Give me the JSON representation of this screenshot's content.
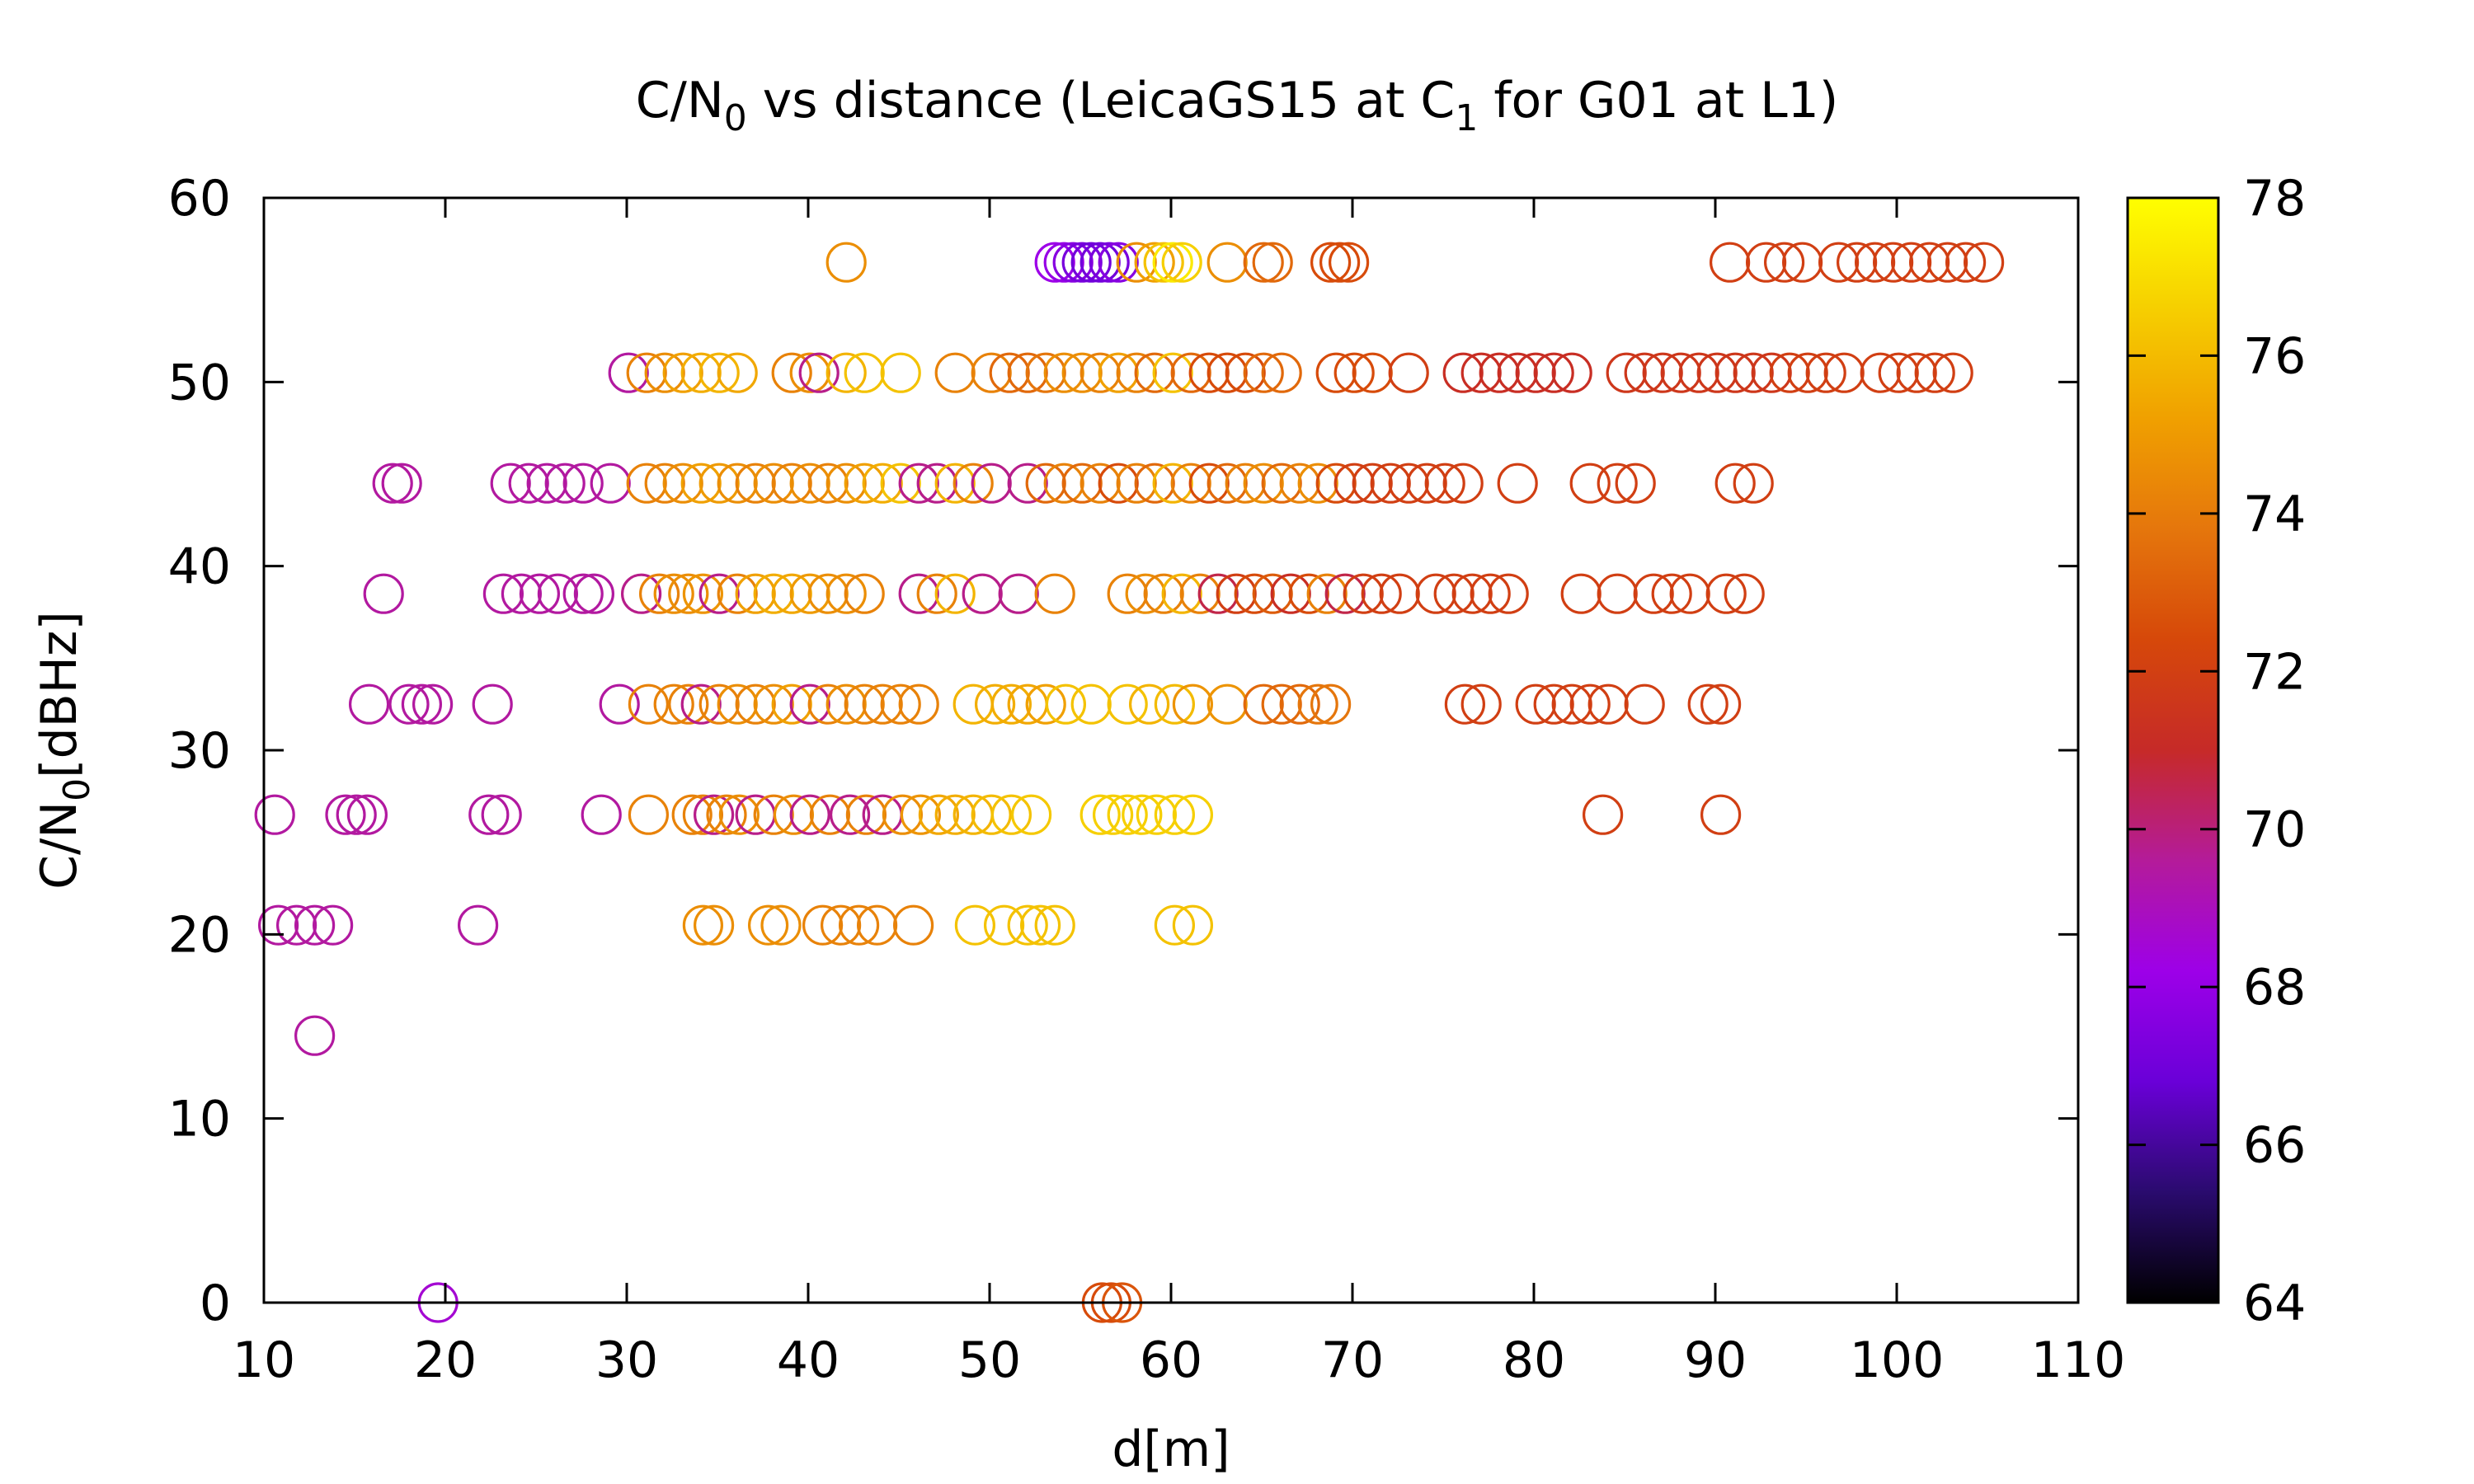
{
  "chart_data": {
    "type": "scatter",
    "title": {
      "prefix": "C/N",
      "prefix_sub": "0",
      "middle": " vs distance (LeicaGS15 at C",
      "middle_sub": "1",
      "suffix": " for G01 at L1)"
    },
    "xlabel": "d[m]",
    "ylabel": {
      "main": "C/N",
      "sub": "0",
      "unit": "[dBHz]"
    },
    "xlim": [
      10,
      110
    ],
    "ylim": [
      0,
      60
    ],
    "x_ticks": [
      "10",
      "20",
      "30",
      "40",
      "50",
      "60",
      "70",
      "80",
      "90",
      "100",
      "110"
    ],
    "y_ticks": [
      "0",
      "10",
      "20",
      "30",
      "40",
      "50",
      "60"
    ],
    "colorbar": {
      "range": [
        64,
        78
      ],
      "ticks": [
        "64",
        "66",
        "68",
        "70",
        "72",
        "74",
        "76",
        "78"
      ],
      "palette": [
        "#000000",
        "#2a0b6e",
        "#6a00d8",
        "#9d00e8",
        "#b41b9a",
        "#c62a28",
        "#d6480a",
        "#e5760c",
        "#f0a000",
        "#f6cf00",
        "#ffff00"
      ]
    },
    "marker": "open-circle",
    "grid": false,
    "points": [
      [
        19.6,
        0,
        68.6
      ],
      [
        56.2,
        0,
        72.5
      ],
      [
        56.7,
        0,
        72.5
      ],
      [
        57.3,
        0,
        72.8
      ],
      [
        12.8,
        14.5,
        69.5
      ],
      [
        10.8,
        20.5,
        69.5
      ],
      [
        11.8,
        20.5,
        69.5
      ],
      [
        12.8,
        20.5,
        69.5
      ],
      [
        13.8,
        20.5,
        69.5
      ],
      [
        21.8,
        20.5,
        69.5
      ],
      [
        34.2,
        20.5,
        74.6
      ],
      [
        34.8,
        20.5,
        74.6
      ],
      [
        37.8,
        20.5,
        74.6
      ],
      [
        38.5,
        20.5,
        74.6
      ],
      [
        40.8,
        20.5,
        74.2
      ],
      [
        41.8,
        20.5,
        74.2
      ],
      [
        42.8,
        20.5,
        74.2
      ],
      [
        43.8,
        20.5,
        74.2
      ],
      [
        45.8,
        20.5,
        74.2
      ],
      [
        49.2,
        20.5,
        76.2
      ],
      [
        50.8,
        20.5,
        76.2
      ],
      [
        52.1,
        20.5,
        76.2
      ],
      [
        52.8,
        20.5,
        76.2
      ],
      [
        53.6,
        20.5,
        76.2
      ],
      [
        60.2,
        20.5,
        76.2
      ],
      [
        61.2,
        20.5,
        76.2
      ],
      [
        10.6,
        26.5,
        69.5
      ],
      [
        14.5,
        26.5,
        69.5
      ],
      [
        15.1,
        26.5,
        69.5
      ],
      [
        15.7,
        26.5,
        69.5
      ],
      [
        22.4,
        26.5,
        69.5
      ],
      [
        23.1,
        26.5,
        69.5
      ],
      [
        28.6,
        26.5,
        69.5
      ],
      [
        31.2,
        26.5,
        74.2
      ],
      [
        33.6,
        26.5,
        74.2
      ],
      [
        34.2,
        26.5,
        74.2
      ],
      [
        34.8,
        26.5,
        69.8
      ],
      [
        35.5,
        26.5,
        74.2
      ],
      [
        36.2,
        26.5,
        74.6
      ],
      [
        37.1,
        26.5,
        69.8
      ],
      [
        38.1,
        26.5,
        74.2
      ],
      [
        39.2,
        26.5,
        74.6
      ],
      [
        40.1,
        26.5,
        69.8
      ],
      [
        41.2,
        26.5,
        74.2
      ],
      [
        42.3,
        26.5,
        69.8
      ],
      [
        43.2,
        26.5,
        74.2
      ],
      [
        44.1,
        26.5,
        69.8
      ],
      [
        45.2,
        26.5,
        74.6
      ],
      [
        46.2,
        26.5,
        74.8
      ],
      [
        47.2,
        26.5,
        75.4
      ],
      [
        48.1,
        26.5,
        75.6
      ],
      [
        49.1,
        26.5,
        75.8
      ],
      [
        50.1,
        26.5,
        76.0
      ],
      [
        51.2,
        26.5,
        76.2
      ],
      [
        52.3,
        26.5,
        76.4
      ],
      [
        56.1,
        26.5,
        76.6
      ],
      [
        56.8,
        26.5,
        76.6
      ],
      [
        57.6,
        26.5,
        76.6
      ],
      [
        58.4,
        26.5,
        76.6
      ],
      [
        59.2,
        26.5,
        76.6
      ],
      [
        60.2,
        26.5,
        76.6
      ],
      [
        61.2,
        26.5,
        76.6
      ],
      [
        83.8,
        26.5,
        72.0
      ],
      [
        90.3,
        26.5,
        72.0
      ],
      [
        15.8,
        32.5,
        69.5
      ],
      [
        18.0,
        32.5,
        69.5
      ],
      [
        18.7,
        32.5,
        69.5
      ],
      [
        19.3,
        32.5,
        69.5
      ],
      [
        22.6,
        32.5,
        69.5
      ],
      [
        29.6,
        32.5,
        69.5
      ],
      [
        31.2,
        32.5,
        74.2
      ],
      [
        32.6,
        32.5,
        74.2
      ],
      [
        33.4,
        32.5,
        74.2
      ],
      [
        34.1,
        32.5,
        69.8
      ],
      [
        35.1,
        32.5,
        74.2
      ],
      [
        36.1,
        32.5,
        74.6
      ],
      [
        37.1,
        32.5,
        74.2
      ],
      [
        38.1,
        32.5,
        74.6
      ],
      [
        39.1,
        32.5,
        75.2
      ],
      [
        40.1,
        32.5,
        69.8
      ],
      [
        41.1,
        32.5,
        74.2
      ],
      [
        42.1,
        32.5,
        74.6
      ],
      [
        43.1,
        32.5,
        74.2
      ],
      [
        44.1,
        32.5,
        74.2
      ],
      [
        45.1,
        32.5,
        74.2
      ],
      [
        46.1,
        32.5,
        74.2
      ],
      [
        49.1,
        32.5,
        75.8
      ],
      [
        50.3,
        32.5,
        75.6
      ],
      [
        51.2,
        32.5,
        75.6
      ],
      [
        52.1,
        32.5,
        75.4
      ],
      [
        53.1,
        32.5,
        75.2
      ],
      [
        54.2,
        32.5,
        76.2
      ],
      [
        55.6,
        32.5,
        76.2
      ],
      [
        57.6,
        32.5,
        76.2
      ],
      [
        58.8,
        32.5,
        75.8
      ],
      [
        60.2,
        32.5,
        76.0
      ],
      [
        61.2,
        32.5,
        74.8
      ],
      [
        63.1,
        32.5,
        74.8
      ],
      [
        65.1,
        32.5,
        73.4
      ],
      [
        66.1,
        32.5,
        73.4
      ],
      [
        67.1,
        32.5,
        73.4
      ],
      [
        68.1,
        32.5,
        73.8
      ],
      [
        68.8,
        32.5,
        73.8
      ],
      [
        76.2,
        32.5,
        72.0
      ],
      [
        77.1,
        32.5,
        72.0
      ],
      [
        80.1,
        32.5,
        72.0
      ],
      [
        81.1,
        32.5,
        72.0
      ],
      [
        82.1,
        32.5,
        72.0
      ],
      [
        83.1,
        32.5,
        72.0
      ],
      [
        84.1,
        32.5,
        72.0
      ],
      [
        86.1,
        32.5,
        72.0
      ],
      [
        89.6,
        32.5,
        72.0
      ],
      [
        90.3,
        32.5,
        72.0
      ],
      [
        16.6,
        38.5,
        69.5
      ],
      [
        23.2,
        38.5,
        69.5
      ],
      [
        24.2,
        38.5,
        69.5
      ],
      [
        25.2,
        38.5,
        69.5
      ],
      [
        26.2,
        38.5,
        69.5
      ],
      [
        27.6,
        38.5,
        69.5
      ],
      [
        28.2,
        38.5,
        69.5
      ],
      [
        30.8,
        38.5,
        69.8
      ],
      [
        31.8,
        38.5,
        74.2
      ],
      [
        32.6,
        38.5,
        74.6
      ],
      [
        33.4,
        38.5,
        74.6
      ],
      [
        34.2,
        38.5,
        74.8
      ],
      [
        35.1,
        38.5,
        69.8
      ],
      [
        36.1,
        38.5,
        74.2
      ],
      [
        37.1,
        38.5,
        75.2
      ],
      [
        38.1,
        38.5,
        75.6
      ],
      [
        39.1,
        38.5,
        75.4
      ],
      [
        40.1,
        38.5,
        75.0
      ],
      [
        41.1,
        38.5,
        74.6
      ],
      [
        42.1,
        38.5,
        74.6
      ],
      [
        43.1,
        38.5,
        74.2
      ],
      [
        46.1,
        38.5,
        69.8
      ],
      [
        47.1,
        38.5,
        74.2
      ],
      [
        48.1,
        38.5,
        75.8
      ],
      [
        49.6,
        38.5,
        69.8
      ],
      [
        51.6,
        38.5,
        69.8
      ],
      [
        53.6,
        38.5,
        74.2
      ],
      [
        57.6,
        38.5,
        74.2
      ],
      [
        58.6,
        38.5,
        74.6
      ],
      [
        59.6,
        38.5,
        74.2
      ],
      [
        60.6,
        38.5,
        75.8
      ],
      [
        61.6,
        38.5,
        74.2
      ],
      [
        62.6,
        38.5,
        70.6
      ],
      [
        63.6,
        38.5,
        72.0
      ],
      [
        64.6,
        38.5,
        72.5
      ],
      [
        65.6,
        38.5,
        73.0
      ],
      [
        66.6,
        38.5,
        71.2
      ],
      [
        67.6,
        38.5,
        72.5
      ],
      [
        68.6,
        38.5,
        74.2
      ],
      [
        69.6,
        38.5,
        70.6
      ],
      [
        70.6,
        38.5,
        72.0
      ],
      [
        71.6,
        38.5,
        72.0
      ],
      [
        72.6,
        38.5,
        72.0
      ],
      [
        74.6,
        38.5,
        72.0
      ],
      [
        75.6,
        38.5,
        72.0
      ],
      [
        76.6,
        38.5,
        72.0
      ],
      [
        77.6,
        38.5,
        72.0
      ],
      [
        78.6,
        38.5,
        72.0
      ],
      [
        82.6,
        38.5,
        72.0
      ],
      [
        84.6,
        38.5,
        72.0
      ],
      [
        86.6,
        38.5,
        72.0
      ],
      [
        87.6,
        38.5,
        72.0
      ],
      [
        88.6,
        38.5,
        72.0
      ],
      [
        90.6,
        38.5,
        72.0
      ],
      [
        91.6,
        38.5,
        72.0
      ],
      [
        17.1,
        44.5,
        69.5
      ],
      [
        17.6,
        44.5,
        69.5
      ],
      [
        23.6,
        44.5,
        69.5
      ],
      [
        24.6,
        44.5,
        69.5
      ],
      [
        25.6,
        44.5,
        69.5
      ],
      [
        26.6,
        44.5,
        69.5
      ],
      [
        27.6,
        44.5,
        69.5
      ],
      [
        29.1,
        44.5,
        69.5
      ],
      [
        31.1,
        44.5,
        74.2
      ],
      [
        32.1,
        44.5,
        74.2
      ],
      [
        33.1,
        44.5,
        74.6
      ],
      [
        34.1,
        44.5,
        75.2
      ],
      [
        35.1,
        44.5,
        75.0
      ],
      [
        36.1,
        44.5,
        74.6
      ],
      [
        37.1,
        44.5,
        74.2
      ],
      [
        38.1,
        44.5,
        74.6
      ],
      [
        39.1,
        44.5,
        74.2
      ],
      [
        40.1,
        44.5,
        74.6
      ],
      [
        41.1,
        44.5,
        74.2
      ],
      [
        42.1,
        44.5,
        74.6
      ],
      [
        43.1,
        44.5,
        75.2
      ],
      [
        44.1,
        44.5,
        75.6
      ],
      [
        45.1,
        44.5,
        76.2
      ],
      [
        46.1,
        44.5,
        69.8
      ],
      [
        47.1,
        44.5,
        69.8
      ],
      [
        48.1,
        44.5,
        75.8
      ],
      [
        49.1,
        44.5,
        74.2
      ],
      [
        50.1,
        44.5,
        69.8
      ],
      [
        52.1,
        44.5,
        69.8
      ],
      [
        53.1,
        44.5,
        73.4
      ],
      [
        54.1,
        44.5,
        74.2
      ],
      [
        55.1,
        44.5,
        73.4
      ],
      [
        56.1,
        44.5,
        74.2
      ],
      [
        57.1,
        44.5,
        72.5
      ],
      [
        58.1,
        44.5,
        74.2
      ],
      [
        59.1,
        44.5,
        73.4
      ],
      [
        60.1,
        44.5,
        75.8
      ],
      [
        61.1,
        44.5,
        74.2
      ],
      [
        62.1,
        44.5,
        72.5
      ],
      [
        63.1,
        44.5,
        73.4
      ],
      [
        64.1,
        44.5,
        74.2
      ],
      [
        65.1,
        44.5,
        74.6
      ],
      [
        66.1,
        44.5,
        73.4
      ],
      [
        67.1,
        44.5,
        74.2
      ],
      [
        68.1,
        44.5,
        74.6
      ],
      [
        69.1,
        44.5,
        72.5
      ],
      [
        70.1,
        44.5,
        72.0
      ],
      [
        71.1,
        44.5,
        72.0
      ],
      [
        72.1,
        44.5,
        72.0
      ],
      [
        73.1,
        44.5,
        72.0
      ],
      [
        74.1,
        44.5,
        72.0
      ],
      [
        75.1,
        44.5,
        72.0
      ],
      [
        76.1,
        44.5,
        72.0
      ],
      [
        79.1,
        44.5,
        72.0
      ],
      [
        83.1,
        44.5,
        72.0
      ],
      [
        84.6,
        44.5,
        72.0
      ],
      [
        85.6,
        44.5,
        72.0
      ],
      [
        91.1,
        44.5,
        72.0
      ],
      [
        92.1,
        44.5,
        72.0
      ],
      [
        30.1,
        50.5,
        69.5
      ],
      [
        31.1,
        50.5,
        74.2
      ],
      [
        32.1,
        50.5,
        74.6
      ],
      [
        33.1,
        50.5,
        75.2
      ],
      [
        34.1,
        50.5,
        75.6
      ],
      [
        35.1,
        50.5,
        75.8
      ],
      [
        36.1,
        50.5,
        75.4
      ],
      [
        39.1,
        50.5,
        74.2
      ],
      [
        40.1,
        50.5,
        74.6
      ],
      [
        40.6,
        50.5,
        69.8
      ],
      [
        42.1,
        50.5,
        75.8
      ],
      [
        43.1,
        50.5,
        76.2
      ],
      [
        45.1,
        50.5,
        76.2
      ],
      [
        48.1,
        50.5,
        74.2
      ],
      [
        50.1,
        50.5,
        74.2
      ],
      [
        51.1,
        50.5,
        73.4
      ],
      [
        52.1,
        50.5,
        73.4
      ],
      [
        53.1,
        50.5,
        73.8
      ],
      [
        54.1,
        50.5,
        74.6
      ],
      [
        55.1,
        50.5,
        74.6
      ],
      [
        56.1,
        50.5,
        74.2
      ],
      [
        57.1,
        50.5,
        75.2
      ],
      [
        58.1,
        50.5,
        74.2
      ],
      [
        59.1,
        50.5,
        73.4
      ],
      [
        60.1,
        50.5,
        76.2
      ],
      [
        61.1,
        50.5,
        73.4
      ],
      [
        62.1,
        50.5,
        72.5
      ],
      [
        63.1,
        50.5,
        72.5
      ],
      [
        64.1,
        50.5,
        72.5
      ],
      [
        65.1,
        50.5,
        73.4
      ],
      [
        66.1,
        50.5,
        73.4
      ],
      [
        69.1,
        50.5,
        72.5
      ],
      [
        70.1,
        50.5,
        72.5
      ],
      [
        71.1,
        50.5,
        72.5
      ],
      [
        73.1,
        50.5,
        72.0
      ],
      [
        76.1,
        50.5,
        71.2
      ],
      [
        77.1,
        50.5,
        71.2
      ],
      [
        78.1,
        50.5,
        71.2
      ],
      [
        79.1,
        50.5,
        71.2
      ],
      [
        80.1,
        50.5,
        71.2
      ],
      [
        81.1,
        50.5,
        71.2
      ],
      [
        82.1,
        50.5,
        71.2
      ],
      [
        85.1,
        50.5,
        71.6
      ],
      [
        86.1,
        50.5,
        71.6
      ],
      [
        87.1,
        50.5,
        71.6
      ],
      [
        88.1,
        50.5,
        71.6
      ],
      [
        89.1,
        50.5,
        71.6
      ],
      [
        90.1,
        50.5,
        71.6
      ],
      [
        91.1,
        50.5,
        71.6
      ],
      [
        92.1,
        50.5,
        71.6
      ],
      [
        93.1,
        50.5,
        71.6
      ],
      [
        94.1,
        50.5,
        72.0
      ],
      [
        95.1,
        50.5,
        72.0
      ],
      [
        96.1,
        50.5,
        72.0
      ],
      [
        97.1,
        50.5,
        72.0
      ],
      [
        99.1,
        50.5,
        72.0
      ],
      [
        100.1,
        50.5,
        72.0
      ],
      [
        101.1,
        50.5,
        72.0
      ],
      [
        102.1,
        50.5,
        72.0
      ],
      [
        103.1,
        50.5,
        72.0
      ],
      [
        42.1,
        56.5,
        74.6
      ],
      [
        53.6,
        56.5,
        68.2
      ],
      [
        54.1,
        56.5,
        68.0
      ],
      [
        54.6,
        56.5,
        67.6
      ],
      [
        55.1,
        56.5,
        67.2
      ],
      [
        55.6,
        56.5,
        67.0
      ],
      [
        56.1,
        56.5,
        67.0
      ],
      [
        56.6,
        56.5,
        67.2
      ],
      [
        57.1,
        56.5,
        67.6
      ],
      [
        58.1,
        56.5,
        74.6
      ],
      [
        59.1,
        56.5,
        75.2
      ],
      [
        59.6,
        56.5,
        76.2
      ],
      [
        60.1,
        56.5,
        77.4
      ],
      [
        60.6,
        56.5,
        76.6
      ],
      [
        63.1,
        56.5,
        74.6
      ],
      [
        65.1,
        56.5,
        73.4
      ],
      [
        65.6,
        56.5,
        73.4
      ],
      [
        68.8,
        56.5,
        72.5
      ],
      [
        69.3,
        56.5,
        72.5
      ],
      [
        69.8,
        56.5,
        72.5
      ],
      [
        90.8,
        56.5,
        72.0
      ],
      [
        92.8,
        56.5,
        72.0
      ],
      [
        93.8,
        56.5,
        72.0
      ],
      [
        94.8,
        56.5,
        72.0
      ],
      [
        96.8,
        56.5,
        72.0
      ],
      [
        97.8,
        56.5,
        72.0
      ],
      [
        98.8,
        56.5,
        72.0
      ],
      [
        99.8,
        56.5,
        72.0
      ],
      [
        100.8,
        56.5,
        72.0
      ],
      [
        101.8,
        56.5,
        72.0
      ],
      [
        102.8,
        56.5,
        72.0
      ],
      [
        103.8,
        56.5,
        72.0
      ],
      [
        104.8,
        56.5,
        72.0
      ]
    ]
  }
}
